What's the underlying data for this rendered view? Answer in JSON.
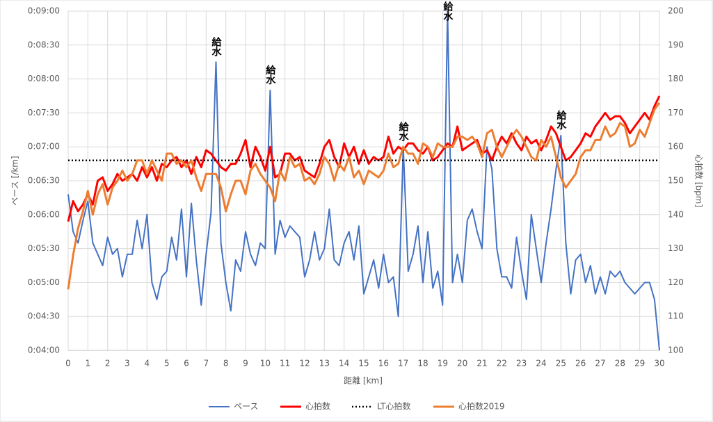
{
  "chart_data": {
    "type": "line",
    "x_label": "距離 [km]",
    "y_label": "ペース [/km]",
    "y2_label": "心拍数 [bpm]",
    "xlim": [
      0,
      30
    ],
    "xticks": [
      0,
      1,
      2,
      3,
      4,
      5,
      6,
      7,
      8,
      9,
      10,
      11,
      12,
      13,
      14,
      15,
      16,
      17,
      18,
      19,
      20,
      21,
      22,
      23,
      24,
      25,
      26,
      27,
      28,
      29,
      30
    ],
    "ylim": [
      240,
      540
    ],
    "yticks": [
      {
        "value": 240,
        "label": "0:04:00"
      },
      {
        "value": 270,
        "label": "0:04:30"
      },
      {
        "value": 300,
        "label": "0:05:00"
      },
      {
        "value": 330,
        "label": "0:05:30"
      },
      {
        "value": 360,
        "label": "0:06:00"
      },
      {
        "value": 390,
        "label": "0:06:30"
      },
      {
        "value": 420,
        "label": "0:07:00"
      },
      {
        "value": 450,
        "label": "0:07:30"
      },
      {
        "value": 480,
        "label": "0:08:00"
      },
      {
        "value": 510,
        "label": "0:08:30"
      },
      {
        "value": 540,
        "label": "0:09:00"
      }
    ],
    "y2lim": [
      100,
      200
    ],
    "y2ticks": [
      100,
      110,
      120,
      130,
      140,
      150,
      160,
      170,
      180,
      190,
      200
    ],
    "grid": true,
    "legend": "bottom",
    "x": [
      0,
      0.25,
      0.5,
      0.75,
      1,
      1.25,
      1.5,
      1.75,
      2,
      2.25,
      2.5,
      2.75,
      3,
      3.25,
      3.5,
      3.75,
      4,
      4.25,
      4.5,
      4.75,
      5,
      5.25,
      5.5,
      5.75,
      6,
      6.25,
      6.5,
      6.75,
      7,
      7.25,
      7.5,
      7.75,
      8,
      8.25,
      8.5,
      8.75,
      9,
      9.25,
      9.5,
      9.75,
      10,
      10.25,
      10.5,
      10.75,
      11,
      11.25,
      11.5,
      11.75,
      12,
      12.25,
      12.5,
      12.75,
      13,
      13.25,
      13.5,
      13.75,
      14,
      14.25,
      14.5,
      14.75,
      15,
      15.25,
      15.5,
      15.75,
      16,
      16.25,
      16.5,
      16.75,
      17,
      17.25,
      17.5,
      17.75,
      18,
      18.25,
      18.5,
      18.75,
      19,
      19.25,
      19.5,
      19.75,
      20,
      20.25,
      20.5,
      20.75,
      21,
      21.25,
      21.5,
      21.75,
      22,
      22.25,
      22.5,
      22.75,
      23,
      23.25,
      23.5,
      23.75,
      24,
      24.25,
      24.5,
      24.75,
      25,
      25.25,
      25.5,
      25.75,
      26,
      26.25,
      26.5,
      26.75,
      27,
      27.25,
      27.5,
      27.75,
      28,
      28.25,
      28.5,
      28.75,
      29,
      29.25,
      29.5,
      29.75,
      30
    ],
    "series": [
      {
        "name": "ペース",
        "color": "#4472c4",
        "width": 2,
        "axis": "y",
        "values": [
          378,
          345,
          335,
          355,
          372,
          335,
          325,
          315,
          340,
          325,
          330,
          305,
          325,
          325,
          355,
          330,
          360,
          300,
          285,
          305,
          310,
          340,
          320,
          365,
          305,
          370,
          320,
          280,
          325,
          362,
          495,
          335,
          300,
          275,
          320,
          310,
          345,
          325,
          315,
          335,
          330,
          470,
          325,
          355,
          340,
          350,
          345,
          340,
          305,
          320,
          345,
          320,
          330,
          365,
          320,
          315,
          335,
          345,
          320,
          350,
          290,
          305,
          320,
          295,
          325,
          300,
          305,
          270,
          420,
          310,
          325,
          350,
          300,
          345,
          295,
          310,
          280,
          540,
          300,
          325,
          300,
          355,
          365,
          345,
          330,
          420,
          400,
          330,
          305,
          305,
          295,
          340,
          310,
          285,
          360,
          330,
          300,
          335,
          365,
          400,
          430,
          335,
          290,
          320,
          325,
          300,
          315,
          290,
          305,
          290,
          310,
          305,
          310,
          300,
          295,
          290,
          295,
          300,
          300,
          285,
          240
        ]
      },
      {
        "name": "心拍数",
        "color": "#ff0000",
        "width": 3,
        "axis": "y2",
        "values": [
          138,
          144,
          141,
          143,
          146,
          143,
          150,
          151,
          147,
          149,
          152,
          150,
          151,
          152,
          150,
          154,
          151,
          154,
          150,
          155,
          154,
          156,
          157,
          154,
          156,
          152,
          157,
          154,
          159,
          158,
          156,
          154,
          153,
          155,
          155,
          158,
          162,
          154,
          160,
          157,
          153,
          160,
          151,
          152,
          158,
          158,
          156,
          157,
          153,
          152,
          151,
          155,
          160,
          162,
          157,
          154,
          161,
          157,
          160,
          155,
          159,
          155,
          157,
          156,
          157,
          163,
          158,
          160,
          159,
          161,
          161,
          159,
          158,
          160,
          156,
          157,
          159,
          161,
          160,
          166,
          159,
          160,
          161,
          162,
          158,
          159,
          156,
          160,
          163,
          161,
          164,
          161,
          159,
          163,
          161,
          162,
          159,
          162,
          166,
          164,
          160,
          156,
          157,
          159,
          161,
          164,
          163,
          166,
          168,
          170,
          168,
          169,
          169,
          167,
          164,
          166,
          168,
          170,
          168,
          172,
          175
        ]
      },
      {
        "name": "LT心拍数",
        "color": "#000000",
        "width": 2.5,
        "dash": true,
        "axis": "y2",
        "x": [
          0,
          30
        ],
        "values": [
          156,
          156
        ]
      },
      {
        "name": "心拍数2019",
        "color": "#ed7d31",
        "width": 3,
        "axis": "y2",
        "values": [
          118,
          128,
          136,
          141,
          147,
          140,
          146,
          149,
          143,
          148,
          150,
          153,
          150,
          152,
          156,
          156,
          152,
          156,
          153,
          150,
          158,
          158,
          155,
          156,
          154,
          156,
          151,
          147,
          152,
          152,
          152,
          148,
          141,
          146,
          150,
          150,
          146,
          153,
          155,
          152,
          150,
          148,
          144,
          153,
          150,
          157,
          154,
          155,
          150,
          151,
          149,
          152,
          157,
          155,
          150,
          155,
          153,
          157,
          151,
          153,
          149,
          153,
          152,
          151,
          153,
          158,
          154,
          155,
          160,
          158,
          158,
          155,
          161,
          160,
          157,
          161,
          160,
          160,
          160,
          163,
          163,
          162,
          163,
          161,
          157,
          164,
          165,
          160,
          157,
          160,
          163,
          165,
          163,
          160,
          157,
          156,
          162,
          160,
          163,
          157,
          151,
          148,
          150,
          152,
          157,
          159,
          159,
          162,
          162,
          166,
          163,
          164,
          167,
          166,
          160,
          161,
          165,
          163,
          167,
          171,
          173
        ]
      }
    ],
    "annotations": [
      {
        "text": "給水",
        "x": 7.5
      },
      {
        "text": "給水",
        "x": 10.25
      },
      {
        "text": "給水",
        "x": 17
      },
      {
        "text": "給水",
        "x": 19.25
      },
      {
        "text": "給水",
        "x": 25
      }
    ]
  }
}
